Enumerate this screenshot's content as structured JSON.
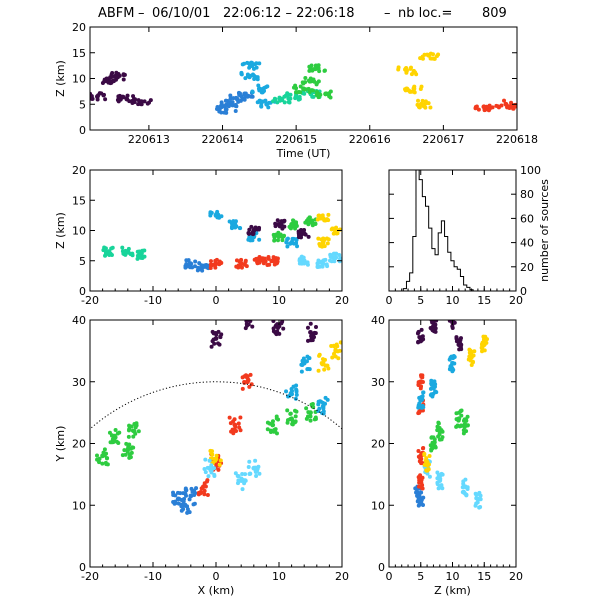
{
  "title": {
    "prefix": "ABFM",
    "date": "06/10/01",
    "time_range": "22:06:12 – 22:06:18",
    "count_label": "nb loc.=",
    "count": "809"
  },
  "colors": {
    "series": [
      "#3b0a45",
      "#2a7fd6",
      "#1aa9e0",
      "#18d49a",
      "#2ecc40",
      "#ffd400",
      "#f23a1e",
      "#65d9ff"
    ]
  },
  "chart_data": [
    {
      "panel": "time-z",
      "type": "scatter",
      "xlabel": "Time (UT)",
      "ylabel": "Z (km)",
      "xlim": [
        220612.2,
        220618.0
      ],
      "ylim": [
        0,
        20
      ],
      "xticks": [
        220613,
        220614,
        220615,
        220616,
        220617,
        220618
      ],
      "yticks": [
        0,
        5,
        10,
        15,
        20
      ],
      "clusters": [
        {
          "color": "#3b0a45",
          "points": [
            [
              220612.3,
              6.5
            ],
            [
              220612.45,
              9.5
            ],
            [
              220612.55,
              10.5
            ],
            [
              220612.7,
              6.0
            ],
            [
              220612.9,
              5.5
            ]
          ]
        },
        {
          "color": "#2a7fd6",
          "points": [
            [
              220614.1,
              5.0
            ],
            [
              220614.2,
              6.0
            ],
            [
              220614.3,
              7.0
            ],
            [
              220614.05,
              4.0
            ]
          ]
        },
        {
          "color": "#1aa9e0",
          "points": [
            [
              220614.4,
              12.5
            ],
            [
              220614.35,
              10.5
            ],
            [
              220614.5,
              8.0
            ],
            [
              220614.6,
              5.0
            ]
          ]
        },
        {
          "color": "#18d49a",
          "points": [
            [
              220614.8,
              6.0
            ],
            [
              220615.0,
              6.5
            ],
            [
              220615.2,
              7.0
            ]
          ]
        },
        {
          "color": "#2ecc40",
          "points": [
            [
              220615.2,
              9.5
            ],
            [
              220615.3,
              12.0
            ],
            [
              220615.4,
              7.0
            ],
            [
              220615.1,
              8.0
            ]
          ]
        },
        {
          "color": "#ffd400",
          "points": [
            [
              220616.5,
              11.5
            ],
            [
              220616.6,
              8.0
            ],
            [
              220616.7,
              5.0
            ],
            [
              220616.8,
              14.5
            ]
          ]
        },
        {
          "color": "#f23a1e",
          "points": [
            [
              220617.55,
              4.5
            ],
            [
              220617.85,
              5.0
            ],
            [
              220617.95,
              4.2
            ]
          ]
        }
      ]
    },
    {
      "panel": "x-z",
      "type": "scatter",
      "xlabel": "",
      "ylabel": "Z (km)",
      "xlim": [
        -20,
        20
      ],
      "ylim": [
        0,
        20
      ],
      "xticks": [
        -20,
        -10,
        0,
        10,
        20
      ],
      "yticks": [
        0,
        5,
        10,
        15,
        20
      ],
      "clusters": [
        {
          "color": "#18d49a",
          "points": [
            [
              -17,
              6.5
            ],
            [
              -14,
              6.5
            ],
            [
              -12,
              6.0
            ]
          ]
        },
        {
          "color": "#2a7fd6",
          "points": [
            [
              -4,
              4.5
            ],
            [
              -2,
              4.0
            ]
          ]
        },
        {
          "color": "#f23a1e",
          "points": [
            [
              0,
              4.5
            ],
            [
              4,
              4.5
            ],
            [
              7,
              5.0
            ],
            [
              9,
              5.0
            ]
          ]
        },
        {
          "color": "#1aa9e0",
          "points": [
            [
              0,
              12.5
            ],
            [
              3,
              11.0
            ],
            [
              6,
              9.0
            ],
            [
              12,
              8.0
            ]
          ]
        },
        {
          "color": "#3b0a45",
          "points": [
            [
              6,
              10.0
            ],
            [
              10,
              11.0
            ],
            [
              14,
              9.5
            ]
          ]
        },
        {
          "color": "#2ecc40",
          "points": [
            [
              10,
              9.0
            ],
            [
              12,
              11.0
            ],
            [
              15,
              11.5
            ]
          ]
        },
        {
          "color": "#ffd400",
          "points": [
            [
              17,
              12.0
            ],
            [
              19,
              10.0
            ],
            [
              17,
              8.0
            ]
          ]
        },
        {
          "color": "#65d9ff",
          "points": [
            [
              14,
              5.0
            ],
            [
              17,
              4.5
            ],
            [
              19,
              5.5
            ]
          ]
        }
      ]
    },
    {
      "panel": "histogram",
      "type": "bar",
      "xlabel": "",
      "ylabel": "number of sources",
      "xlim": [
        0,
        20
      ],
      "ylim": [
        0,
        100
      ],
      "xticks": [
        0,
        5,
        10,
        15,
        20
      ],
      "yticks": [
        0,
        20,
        40,
        60,
        80,
        100
      ],
      "bins": [
        [
          2.5,
          2
        ],
        [
          3.0,
          8
        ],
        [
          3.5,
          15
        ],
        [
          4.0,
          45
        ],
        [
          4.5,
          100
        ],
        [
          5.0,
          92
        ],
        [
          5.5,
          78
        ],
        [
          6.0,
          70
        ],
        [
          6.5,
          52
        ],
        [
          7.0,
          35
        ],
        [
          7.5,
          30
        ],
        [
          8.0,
          48
        ],
        [
          8.5,
          58
        ],
        [
          9.0,
          45
        ],
        [
          9.5,
          32
        ],
        [
          10.0,
          25
        ],
        [
          10.5,
          20
        ],
        [
          11.0,
          18
        ],
        [
          11.5,
          12
        ],
        [
          12.0,
          5
        ],
        [
          12.5,
          3
        ],
        [
          13.0,
          1
        ]
      ]
    },
    {
      "panel": "x-y",
      "type": "scatter",
      "xlabel": "X (km)",
      "ylabel": "Y (km)",
      "xlim": [
        -20,
        20
      ],
      "ylim": [
        0,
        40
      ],
      "xticks": [
        -20,
        -10,
        0,
        10,
        20
      ],
      "yticks": [
        0,
        10,
        20,
        30,
        40
      ],
      "range_ring_center": [
        0,
        0
      ],
      "range_ring_radius_km": 30,
      "clusters": [
        {
          "color": "#2ecc40",
          "points": [
            [
              -18,
              18.0
            ],
            [
              -16,
              21.0
            ],
            [
              -13,
              22.0
            ],
            [
              -14,
              19.0
            ]
          ]
        },
        {
          "color": "#2a7fd6",
          "points": [
            [
              -6,
              11.0
            ],
            [
              -4,
              11.5
            ],
            [
              -5,
              10.0
            ]
          ]
        },
        {
          "color": "#f23a1e",
          "points": [
            [
              -2,
              13.0
            ],
            [
              0,
              17.0
            ],
            [
              3,
              23.0
            ],
            [
              5,
              30.0
            ]
          ]
        },
        {
          "color": "#ffd400",
          "points": [
            [
              0,
              17.5
            ],
            [
              17,
              33.0
            ],
            [
              19,
              35.0
            ]
          ]
        },
        {
          "color": "#65d9ff",
          "points": [
            [
              4,
              14.0
            ],
            [
              6,
              16.0
            ],
            [
              -1,
              16.0
            ]
          ]
        },
        {
          "color": "#2ecc40",
          "points": [
            [
              9,
              23.0
            ],
            [
              12,
              24.0
            ],
            [
              15,
              25.0
            ]
          ]
        },
        {
          "color": "#1aa9e0",
          "points": [
            [
              12,
              28.0
            ],
            [
              17,
              26.0
            ],
            [
              14,
              33.0
            ]
          ]
        },
        {
          "color": "#3b0a45",
          "points": [
            [
              0,
              37.0
            ],
            [
              10,
              39.0
            ],
            [
              15,
              38.0
            ],
            [
              5,
              40.0
            ]
          ]
        }
      ]
    },
    {
      "panel": "z-y",
      "type": "scatter",
      "xlabel": "Z (km)",
      "ylabel": "",
      "xlim": [
        0,
        20
      ],
      "ylim": [
        0,
        40
      ],
      "xticks": [
        0,
        5,
        10,
        15,
        20
      ],
      "yticks": [
        0,
        10,
        20,
        30,
        40
      ],
      "clusters": [
        {
          "color": "#2a7fd6",
          "points": [
            [
              5,
              11.0
            ],
            [
              4.5,
              12.0
            ]
          ]
        },
        {
          "color": "#f23a1e",
          "points": [
            [
              5,
              14.0
            ],
            [
              5,
              18.0
            ],
            [
              5,
              26.0
            ],
            [
              5,
              30.0
            ]
          ]
        },
        {
          "color": "#65d9ff",
          "points": [
            [
              6,
              16.0
            ],
            [
              8,
              14.0
            ],
            [
              12,
              13.0
            ],
            [
              14,
              11.0
            ]
          ]
        },
        {
          "color": "#2ecc40",
          "points": [
            [
              7,
              20.0
            ],
            [
              8,
              22.0
            ],
            [
              11,
              24.0
            ],
            [
              12,
              23.0
            ]
          ]
        },
        {
          "color": "#1aa9e0",
          "points": [
            [
              5,
              27.0
            ],
            [
              7,
              29.0
            ],
            [
              10,
              33.0
            ]
          ]
        },
        {
          "color": "#ffd400",
          "points": [
            [
              6,
              17.0
            ],
            [
              13,
              34.0
            ],
            [
              15,
              36.0
            ]
          ]
        },
        {
          "color": "#3b0a45",
          "points": [
            [
              7,
              39.0
            ],
            [
              10,
              40.0
            ],
            [
              11,
              36.0
            ],
            [
              5,
              37.0
            ]
          ]
        }
      ]
    }
  ]
}
